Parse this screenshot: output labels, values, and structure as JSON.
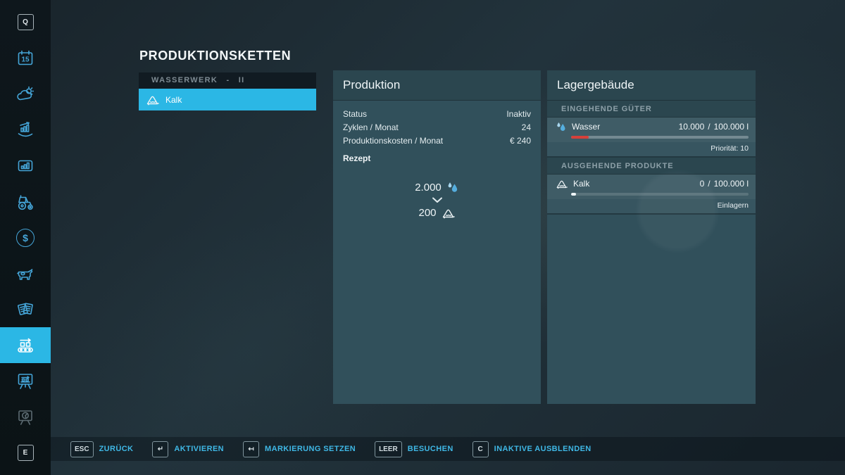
{
  "title": "PRODUKTIONSKETTEN",
  "sidebar": {
    "top_key": "Q",
    "calendar_day": "15",
    "bottom_key": "E",
    "selected_item": "production-chains"
  },
  "chain_list": {
    "header": "WASSERWERK - II",
    "items": [
      {
        "label": "Kalk",
        "selected": true
      }
    ]
  },
  "production": {
    "title": "Produktion",
    "rows": [
      {
        "label": "Status",
        "value": "Inaktiv"
      },
      {
        "label": "Zyklen / Monat",
        "value": "24"
      },
      {
        "label": "Produktionskosten / Monat",
        "value": "€ 240"
      }
    ],
    "recipe_heading": "Rezept",
    "recipe": {
      "input_amount": "2.000",
      "input_good": "Wasser",
      "output_amount": "200",
      "output_good": "Kalk"
    }
  },
  "storage": {
    "title": "Lagergebäude",
    "separator": "/",
    "sections": [
      {
        "heading": "EINGEHENDE GÜTER",
        "rows": [
          {
            "name": "Wasser",
            "amount": "10.000",
            "capacity": "100.000 l",
            "fill_percent": 10,
            "note": "Priorität: 10"
          }
        ]
      },
      {
        "heading": "AUSGEHENDE PRODUKTE",
        "rows": [
          {
            "name": "Kalk",
            "amount": "0",
            "capacity": "100.000 l",
            "fill_percent": 0,
            "note": "Einlagern"
          }
        ]
      }
    ]
  },
  "bottom_bar": {
    "items": [
      {
        "key": "ESC",
        "label": "ZURÜCK"
      },
      {
        "key": "↵",
        "label": "AKTIVIEREN"
      },
      {
        "key": "↤",
        "label": "MARKIERUNG SETZEN"
      },
      {
        "key": "LEER",
        "label": "BESUCHEN"
      },
      {
        "key": "C",
        "label": "INAKTIVE AUSBLENDEN"
      }
    ]
  },
  "colors": {
    "accent": "#2bb7e5",
    "bar_red": "#d6403a",
    "panel": "#31505b",
    "sidebar_icon": "#45a5d8"
  }
}
